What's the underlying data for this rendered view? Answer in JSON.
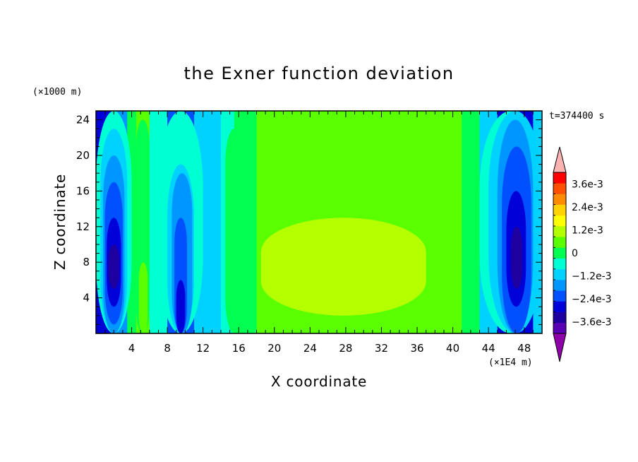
{
  "chart_data": {
    "type": "contour",
    "title": "the Exner function deviation",
    "xlabel": "X coordinate",
    "ylabel": "Z coordinate",
    "x_unit": "(×1E4 m)",
    "y_unit": "(×1000 m)",
    "time_label": "t=374400 s",
    "xlim": [
      0,
      50
    ],
    "ylim": [
      0,
      25
    ],
    "x_ticks": [
      4,
      8,
      12,
      16,
      20,
      24,
      28,
      32,
      36,
      40,
      44,
      48
    ],
    "y_ticks": [
      4,
      8,
      12,
      16,
      20,
      24
    ],
    "levels": [
      -0.0042,
      -0.0036,
      -0.003,
      -0.0024,
      -0.0018,
      -0.0012,
      -0.0006,
      0,
      0.0006,
      0.0012,
      0.0018,
      0.0024,
      0.003,
      0.0036,
      0.0042
    ],
    "colorbar": {
      "under_color": "#9000a8",
      "over_color": "#ffb4b4",
      "colors": [
        "#5a00b4",
        "#1e00a0",
        "#0000d8",
        "#0050ff",
        "#0096ff",
        "#00d2ff",
        "#00ffd2",
        "#00ff50",
        "#5aff00",
        "#b4ff00",
        "#ffff00",
        "#ffd200",
        "#ff8c00",
        "#ff5000",
        "#ff0000"
      ],
      "tick_labels": [
        {
          "value": 0.0036,
          "label": "3.6e-3"
        },
        {
          "value": 0.0024,
          "label": "2.4e-3"
        },
        {
          "value": 0.0012,
          "label": "1.2e-3"
        },
        {
          "value": 0,
          "label": "0"
        },
        {
          "value": -0.0012,
          "label": "−1.2e-3"
        },
        {
          "value": -0.0024,
          "label": "−2.4e-3"
        },
        {
          "value": -0.0036,
          "label": "−3.6e-3"
        }
      ]
    },
    "field_bands": [
      {
        "x0": 0,
        "x1": 2,
        "value": -0.003
      },
      {
        "x0": 2,
        "x1": 3.5,
        "value": -0.0018
      },
      {
        "x0": 3.5,
        "x1": 4.5,
        "value": 0.0003
      },
      {
        "x0": 4.5,
        "x1": 6,
        "value": 0.0009
      },
      {
        "x0": 6,
        "x1": 8,
        "value": -0.0006
      },
      {
        "x0": 8,
        "x1": 11,
        "value": -0.0024
      },
      {
        "x0": 11,
        "x1": 14,
        "value": -0.0009
      },
      {
        "x0": 14,
        "x1": 15.5,
        "value": -0.0002
      },
      {
        "x0": 15.5,
        "x1": 18,
        "value": 0.0001
      },
      {
        "x0": 18,
        "x1": 41,
        "value": 0.0009
      },
      {
        "x0": 41,
        "x1": 43,
        "value": 0.0001
      },
      {
        "x0": 43,
        "x1": 45,
        "value": -0.0009
      },
      {
        "x0": 45,
        "x1": 49,
        "value": -0.003
      },
      {
        "x0": 49,
        "x1": 50,
        "value": -0.0009
      }
    ],
    "field_cells": [
      {
        "x0": 0,
        "x1": 4,
        "z0": 0,
        "z1": 25,
        "value": -0.0006
      },
      {
        "x0": 0.5,
        "x1": 3.5,
        "z0": 0,
        "z1": 23,
        "value": -0.0012
      },
      {
        "x0": 0.8,
        "x1": 3.2,
        "z0": 0,
        "z1": 20,
        "value": -0.0018
      },
      {
        "x0": 1,
        "x1": 3,
        "z0": 1,
        "z1": 17,
        "value": -0.0024
      },
      {
        "x0": 1.2,
        "x1": 2.8,
        "z0": 3,
        "z1": 13,
        "value": -0.003
      },
      {
        "x0": 1.4,
        "x1": 2.6,
        "z0": 5,
        "z1": 10,
        "value": -0.0036
      },
      {
        "x0": 4.5,
        "x1": 6,
        "z0": 0,
        "z1": 24,
        "value": 0.0003
      },
      {
        "x0": 4.8,
        "x1": 5.8,
        "z0": 0,
        "z1": 8,
        "value": 0.0009
      },
      {
        "x0": 7,
        "x1": 12,
        "z0": 0,
        "z1": 25,
        "value": -0.0006
      },
      {
        "x0": 8,
        "x1": 11,
        "z0": 0,
        "z1": 19,
        "value": -0.0012
      },
      {
        "x0": 8.5,
        "x1": 10.8,
        "z0": 0,
        "z1": 18,
        "value": -0.0018
      },
      {
        "x0": 8.8,
        "x1": 10.2,
        "z0": 0,
        "z1": 13,
        "value": -0.0024
      },
      {
        "x0": 9,
        "x1": 10,
        "z0": 0,
        "z1": 6,
        "value": -0.003
      },
      {
        "x0": 14.5,
        "x1": 16.5,
        "z0": 0,
        "z1": 23,
        "value": 0.0001
      },
      {
        "x0": 18,
        "x1": 41,
        "z0": 0,
        "z1": 23.5,
        "value": 0.0009
      },
      {
        "x0": 20,
        "x1": 33,
        "z0": 16,
        "z1": 22,
        "value": 0.0008
      },
      {
        "x0": 18.5,
        "x1": 37,
        "z0": 2,
        "z1": 13,
        "value": 0.0015
      },
      {
        "x0": 22,
        "x1": 24,
        "z0": 7,
        "z1": 12,
        "value": 0.0016
      },
      {
        "x0": 43,
        "x1": 50,
        "z0": 0,
        "z1": 25,
        "value": -0.0006
      },
      {
        "x0": 44,
        "x1": 50,
        "z0": 0,
        "z1": 25,
        "value": -0.0012
      },
      {
        "x0": 45,
        "x1": 49,
        "z0": 0,
        "z1": 24,
        "value": -0.0018
      },
      {
        "x0": 45.5,
        "x1": 48.8,
        "z0": 0,
        "z1": 21,
        "value": -0.0024
      },
      {
        "x0": 46,
        "x1": 48.2,
        "z0": 3,
        "z1": 16,
        "value": -0.003
      },
      {
        "x0": 46.5,
        "x1": 47.8,
        "z0": 5,
        "z1": 12,
        "value": -0.0036
      }
    ]
  }
}
